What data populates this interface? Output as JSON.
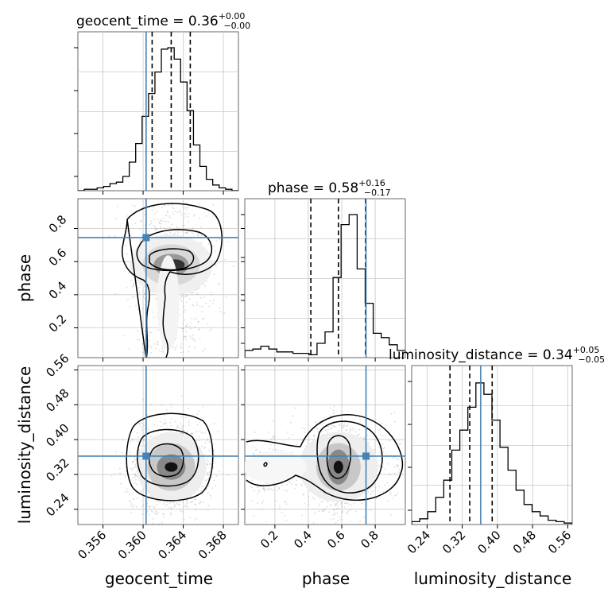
{
  "chart_data": {
    "type": "corner",
    "parameters": [
      "geocent_time",
      "phase",
      "luminosity_distance"
    ],
    "truth": {
      "geocent_time": 0.3603,
      "phase": 0.745,
      "luminosity_distance": 0.362
    },
    "truth_color": "#4682b4",
    "ranges": {
      "geocent_time": [
        0.3535,
        0.3695
      ],
      "phase": [
        0.02,
        0.98
      ],
      "luminosity_distance": [
        0.205,
        0.57
      ]
    },
    "ticks": {
      "geocent_time": [
        0.356,
        0.36,
        0.364,
        0.368
      ],
      "phase": [
        0.2,
        0.4,
        0.6,
        0.8
      ],
      "luminosity_distance": [
        0.24,
        0.32,
        0.4,
        0.48,
        0.56
      ]
    },
    "tick_labels": {
      "geocent_time": [
        "0.356",
        "0.360",
        "0.364",
        "0.368"
      ],
      "phase": [
        "0.2",
        "0.4",
        "0.6",
        "0.8"
      ],
      "luminosity_distance": [
        "0.24",
        "0.32",
        "0.40",
        "0.48",
        "0.56"
      ]
    },
    "titles": {
      "geocent_time": {
        "label": "geocent_time = 0.36",
        "plus": "+0.00",
        "minus": "−0.00"
      },
      "phase": {
        "label": "phase = 0.58",
        "plus": "+0.16",
        "minus": "−0.17"
      },
      "luminosity_distance": {
        "label": "luminosity_distance = 0.34",
        "plus": "+0.05",
        "minus": "−0.05"
      }
    },
    "quantiles": {
      "geocent_time": [
        0.3609,
        0.3628,
        0.3647
      ],
      "phase": [
        0.415,
        0.58,
        0.742
      ],
      "luminosity_distance": [
        0.292,
        0.337,
        0.388
      ]
    },
    "histograms": {
      "geocent_time": [
        0,
        0.01,
        0.01,
        0.02,
        0.03,
        0.05,
        0.06,
        0.1,
        0.2,
        0.33,
        0.52,
        0.68,
        0.83,
        0.99,
        1.0,
        0.92,
        0.76,
        0.56,
        0.32,
        0.17,
        0.08,
        0.04,
        0.02,
        0.01,
        0.0
      ],
      "phase": [
        0.05,
        0.06,
        0.08,
        0.06,
        0.04,
        0.04,
        0.03,
        0.03,
        0.02,
        0.1,
        0.18,
        0.56,
        0.93,
        1.0,
        0.62,
        0.38,
        0.17,
        0.14,
        0.09,
        0.05
      ],
      "luminosity_distance": [
        0.02,
        0.04,
        0.09,
        0.19,
        0.31,
        0.52,
        0.66,
        0.82,
        0.99,
        0.91,
        0.73,
        0.54,
        0.38,
        0.24,
        0.14,
        0.09,
        0.06,
        0.03,
        0.02,
        0.01
      ]
    }
  }
}
